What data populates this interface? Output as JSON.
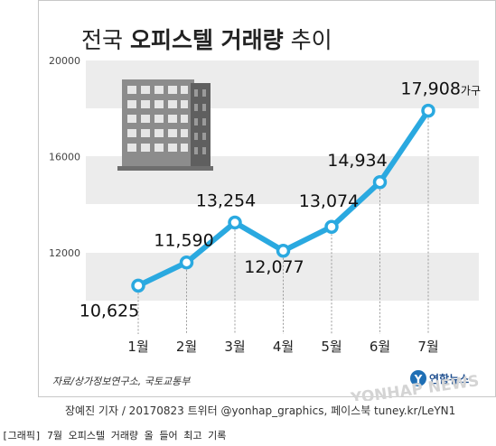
{
  "chart_data": {
    "type": "line",
    "title_plain": "전국 ",
    "title_bold": "오피스텔 거래량",
    "title_tail": " 추이",
    "categories": [
      "1월",
      "2월",
      "3월",
      "4월",
      "5월",
      "6월",
      "7월"
    ],
    "values": [
      10625,
      11590,
      13254,
      12077,
      13074,
      14934,
      17908
    ],
    "value_labels": [
      "10,625",
      "11,590",
      "13,254",
      "12,077",
      "13,074",
      "14,934",
      "17,908"
    ],
    "last_unit": "가구",
    "yticks": [
      12000,
      16000,
      20000
    ],
    "ytick_labels": [
      "12000",
      "16000",
      "20000"
    ],
    "ylim": [
      8000,
      20000
    ],
    "line_color": "#2aa9e0",
    "band_color": "#ececec",
    "grid": "dashed-vertical",
    "source": "자료/상가정보연구소, 국토교통부",
    "logo_text": "연합뉴스",
    "watermark": "YONHAP NEWS"
  },
  "credit": "장예진 기자 / 20170823 트위터 @yonhap_graphics, 페이스북 tuney.kr/LeYN1",
  "caption": "[그래픽] 7월 오피스텔 거래량 올 들어 최고 기록"
}
